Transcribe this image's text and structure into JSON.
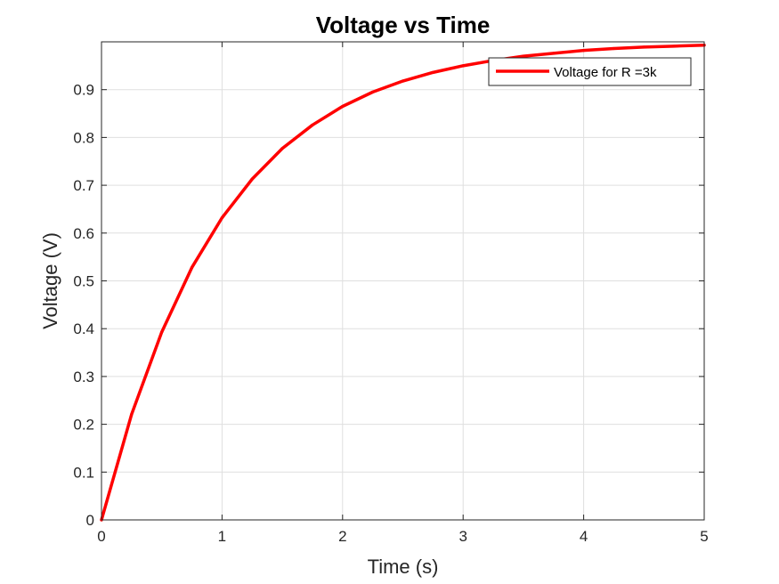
{
  "chart_data": {
    "type": "line",
    "title": "Voltage vs Time",
    "xlabel": "Time (s)",
    "ylabel": "Voltage (V)",
    "xlim": [
      0,
      5
    ],
    "ylim": [
      0,
      1
    ],
    "xticks": [
      0,
      1,
      2,
      3,
      4,
      5
    ],
    "xtick_labels": [
      "0",
      "1",
      "2",
      "3",
      "4",
      "5"
    ],
    "yticks": [
      0,
      0.1,
      0.2,
      0.3,
      0.4,
      0.5,
      0.6,
      0.7,
      0.8,
      0.9
    ],
    "ytick_labels": [
      "0",
      "0.1",
      "0.2",
      "0.3",
      "0.4",
      "0.5",
      "0.6",
      "0.7",
      "0.8",
      "0.9"
    ],
    "grid": true,
    "legend_position": "top-right",
    "series": [
      {
        "name": "Voltage for R =3k",
        "color": "#ff0000",
        "x": [
          0,
          0.25,
          0.5,
          0.75,
          1,
          1.25,
          1.5,
          1.75,
          2,
          2.25,
          2.5,
          2.75,
          3,
          3.25,
          3.5,
          3.75,
          4,
          4.25,
          4.5,
          4.75,
          5
        ],
        "y": [
          0,
          0.221,
          0.393,
          0.528,
          0.632,
          0.713,
          0.777,
          0.826,
          0.865,
          0.895,
          0.918,
          0.936,
          0.95,
          0.961,
          0.97,
          0.976,
          0.982,
          0.986,
          0.989,
          0.991,
          0.993
        ]
      }
    ]
  }
}
